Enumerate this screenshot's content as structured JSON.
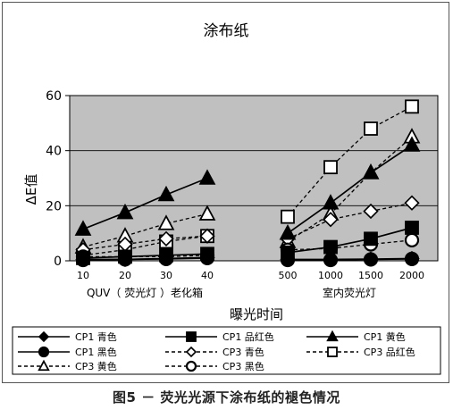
{
  "chart_data": {
    "type": "line",
    "title": "涂布纸",
    "ylabel": "ΔE值",
    "xlabel": "曝光时间",
    "ylim": [
      0,
      60
    ],
    "yticks": [
      0,
      20,
      40,
      60
    ],
    "grid": true,
    "legend_position": "bottom",
    "groups": [
      {
        "label": "QUV（ 荧光灯 ）老化箱",
        "x": [
          "10",
          "20",
          "30",
          "40"
        ]
      },
      {
        "label": "室内荧光灯",
        "x": [
          "500",
          "1000",
          "1500",
          "2000"
        ]
      }
    ],
    "series": [
      {
        "name": "CP1 青色",
        "color": "#000000",
        "marker": "diamond",
        "fill": "#000000",
        "dash": "solid",
        "values": [
          [
            0.5,
            0.5,
            0.8,
            1.2
          ],
          [
            0.5,
            0.5,
            0.6,
            0.8
          ]
        ]
      },
      {
        "name": "CP1 品红色",
        "color": "#000000",
        "marker": "square",
        "fill": "#000000",
        "dash": "solid",
        "values": [
          [
            1.0,
            1.5,
            2.0,
            2.5
          ],
          [
            3.0,
            5.0,
            8.0,
            12.0
          ]
        ]
      },
      {
        "name": "CP1 黄色",
        "color": "#000000",
        "marker": "triangle",
        "fill": "#000000",
        "dash": "solid",
        "values": [
          [
            11.5,
            17.5,
            24.0,
            30.0
          ],
          [
            10.0,
            21.0,
            32.0,
            42.0
          ]
        ]
      },
      {
        "name": "CP1 黑色",
        "color": "#000000",
        "marker": "circle",
        "fill": "#000000",
        "dash": "solid",
        "values": [
          [
            0.3,
            0.5,
            0.7,
            1.0
          ],
          [
            0.3,
            0.3,
            0.5,
            0.7
          ]
        ]
      },
      {
        "name": "CP3 青色",
        "color": "#000000",
        "marker": "diamond",
        "fill": "#ffffff",
        "dash": "dashed",
        "values": [
          [
            4.0,
            6.0,
            8.0,
            9.0
          ],
          [
            8.0,
            15.0,
            18.0,
            21.0
          ]
        ]
      },
      {
        "name": "CP3 品红色",
        "color": "#000000",
        "marker": "square",
        "fill": "#ffffff",
        "dash": "dashed",
        "values": [
          [
            2.0,
            4.0,
            7.0,
            9.0
          ],
          [
            16.0,
            34.0,
            48.0,
            56.0
          ]
        ]
      },
      {
        "name": "CP3 黄色",
        "color": "#000000",
        "marker": "triangle",
        "fill": "#ffffff",
        "dash": "dashed",
        "values": [
          [
            5.0,
            9.0,
            13.5,
            17.0
          ],
          [
            7.0,
            17.0,
            32.0,
            45.0
          ]
        ]
      },
      {
        "name": "CP3 黑色",
        "color": "#000000",
        "marker": "circle",
        "fill": "#ffffff",
        "dash": "dashed",
        "values": [
          [
            1.5,
            1.5,
            1.5,
            2.0
          ],
          [
            4.0,
            4.5,
            6.0,
            7.5
          ]
        ]
      }
    ],
    "plot_background": "#c0c0c0"
  },
  "caption": "图5 － 荧光光源下涂布纸的褪色情况"
}
